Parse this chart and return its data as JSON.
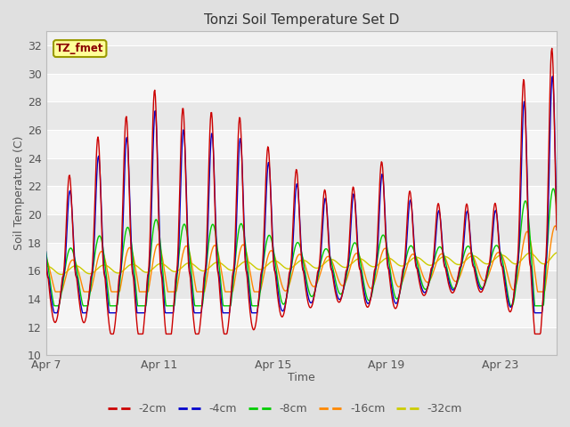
{
  "title": "Tonzi Soil Temperature Set D",
  "xlabel": "Time",
  "ylabel": "Soil Temperature (C)",
  "ylim": [
    10,
    33
  ],
  "yticks": [
    10,
    12,
    14,
    16,
    18,
    20,
    22,
    24,
    26,
    28,
    30,
    32
  ],
  "xtick_labels": [
    "Apr 7",
    "Apr 11",
    "Apr 15",
    "Apr 19",
    "Apr 23"
  ],
  "xtick_positions": [
    0,
    4,
    8,
    12,
    16
  ],
  "xlim": [
    0,
    18
  ],
  "n_days": 18,
  "n_per_day": 48,
  "line_colors": {
    "-2cm": "#cc0000",
    "-4cm": "#0000cc",
    "-8cm": "#00cc00",
    "-16cm": "#ff8800",
    "-32cm": "#cccc00"
  },
  "legend_label": "TZ_fmet",
  "legend_bg": "#ffff99",
  "legend_border": "#999900",
  "band_colors": [
    "#e8e8e8",
    "#f5f5f5"
  ],
  "fig_bg": "#e0e0e0",
  "ax_bg": "#f0f0f0"
}
